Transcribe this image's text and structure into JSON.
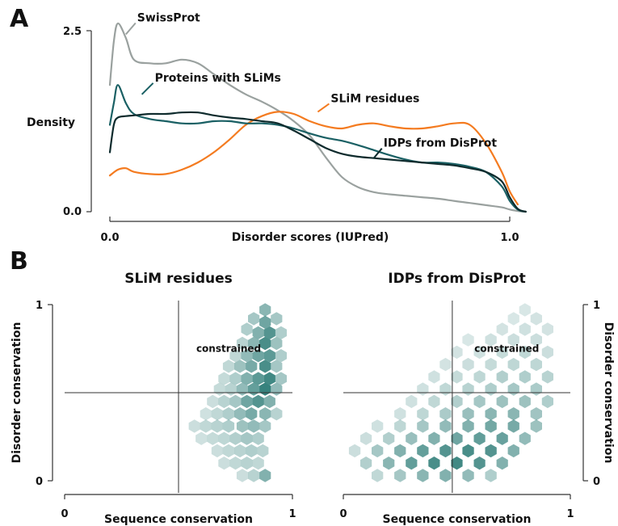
{
  "panel_labels": {
    "a": "A",
    "b": "B"
  },
  "colors": {
    "swissprot": "#9aa19f",
    "slim_proteins": "#1a6064",
    "slim_residues": "#f47b20",
    "disprot": "#0e2b2d",
    "hex": "#2e7d78"
  },
  "chart_data": [
    {
      "type": "line",
      "xlabel": "Disorder scores (IUPred)",
      "ylabel": "Density",
      "xlim": [
        0.0,
        1.0
      ],
      "ylim": [
        0.0,
        2.5
      ],
      "xticks": [
        "0.0",
        "1.0"
      ],
      "yticks": [
        "0.0",
        "2.5"
      ],
      "grid": false,
      "series": [
        {
          "name": "SwissProt",
          "color": "#9aa19f",
          "x": [
            0.0,
            0.01,
            0.02,
            0.04,
            0.06,
            0.1,
            0.14,
            0.18,
            0.22,
            0.26,
            0.3,
            0.34,
            0.38,
            0.42,
            0.46,
            0.5,
            0.54,
            0.58,
            0.62,
            0.66,
            0.7,
            0.74,
            0.78,
            0.82,
            0.86,
            0.9,
            0.94,
            0.98,
            1.0,
            1.02,
            1.04
          ],
          "y": [
            1.75,
            2.35,
            2.6,
            2.4,
            2.1,
            2.05,
            2.05,
            2.1,
            2.05,
            1.9,
            1.75,
            1.62,
            1.52,
            1.4,
            1.25,
            1.05,
            0.75,
            0.48,
            0.34,
            0.27,
            0.24,
            0.22,
            0.2,
            0.18,
            0.15,
            0.12,
            0.09,
            0.06,
            0.03,
            0.01,
            0.0
          ]
        },
        {
          "name": "Proteins with SLiMs",
          "color": "#1a6064",
          "x": [
            0.0,
            0.01,
            0.02,
            0.04,
            0.06,
            0.1,
            0.14,
            0.18,
            0.22,
            0.26,
            0.3,
            0.34,
            0.38,
            0.42,
            0.46,
            0.5,
            0.54,
            0.58,
            0.62,
            0.66,
            0.7,
            0.74,
            0.78,
            0.82,
            0.86,
            0.9,
            0.94,
            0.98,
            1.0,
            1.02,
            1.04
          ],
          "y": [
            1.2,
            1.5,
            1.75,
            1.5,
            1.35,
            1.28,
            1.25,
            1.22,
            1.22,
            1.25,
            1.25,
            1.22,
            1.22,
            1.2,
            1.15,
            1.08,
            1.02,
            0.98,
            0.92,
            0.85,
            0.78,
            0.72,
            0.68,
            0.68,
            0.66,
            0.62,
            0.55,
            0.35,
            0.15,
            0.03,
            0.0
          ]
        },
        {
          "name": "SLiM residues",
          "color": "#f47b20",
          "x": [
            0.0,
            0.02,
            0.04,
            0.06,
            0.1,
            0.14,
            0.18,
            0.22,
            0.26,
            0.3,
            0.34,
            0.38,
            0.42,
            0.46,
            0.5,
            0.54,
            0.58,
            0.62,
            0.66,
            0.7,
            0.74,
            0.78,
            0.82,
            0.86,
            0.9,
            0.94,
            0.98,
            1.0,
            1.02
          ],
          "y": [
            0.5,
            0.58,
            0.6,
            0.55,
            0.52,
            0.52,
            0.58,
            0.68,
            0.82,
            1.0,
            1.2,
            1.32,
            1.38,
            1.35,
            1.25,
            1.18,
            1.15,
            1.2,
            1.22,
            1.18,
            1.15,
            1.15,
            1.18,
            1.22,
            1.2,
            0.95,
            0.55,
            0.28,
            0.1
          ]
        },
        {
          "name": "IDPs from DisProt",
          "color": "#0e2b2d",
          "x": [
            0.0,
            0.01,
            0.02,
            0.04,
            0.06,
            0.1,
            0.14,
            0.18,
            0.22,
            0.26,
            0.3,
            0.34,
            0.38,
            0.42,
            0.46,
            0.5,
            0.54,
            0.58,
            0.62,
            0.66,
            0.7,
            0.74,
            0.78,
            0.82,
            0.86,
            0.9,
            0.94,
            0.98,
            1.0,
            1.02,
            1.04
          ],
          "y": [
            0.82,
            1.2,
            1.3,
            1.32,
            1.33,
            1.35,
            1.35,
            1.37,
            1.37,
            1.33,
            1.3,
            1.28,
            1.25,
            1.22,
            1.12,
            1.0,
            0.88,
            0.8,
            0.76,
            0.74,
            0.72,
            0.7,
            0.68,
            0.66,
            0.64,
            0.6,
            0.55,
            0.42,
            0.2,
            0.04,
            0.0
          ]
        }
      ],
      "annotations": [
        {
          "text": "SwissProt",
          "series": "SwissProt",
          "x": 0.04,
          "y": 2.45
        },
        {
          "text": "Proteins with SLiMs",
          "series": "Proteins with SLiMs",
          "x": 0.08,
          "y": 1.62
        },
        {
          "text": "SLiM residues",
          "series": "SLiM residues",
          "x": 0.52,
          "y": 1.38
        },
        {
          "text": "IDPs from DisProt",
          "series": "IDPs from DisProt",
          "x": 0.66,
          "y": 0.74
        }
      ]
    },
    {
      "type": "heatmap",
      "title": "SLiM residues",
      "xlabel": "Sequence conservation",
      "ylabel": "Disorder conservation",
      "xlim": [
        0,
        1
      ],
      "ylim": [
        0,
        1
      ],
      "xticks": [
        "0",
        "1"
      ],
      "yticks": [
        "0",
        "1"
      ],
      "yaxis_side": "left",
      "quadrant_lines": {
        "x": 0.5,
        "y": 0.5
      },
      "quadrant_label": {
        "text": "constrained",
        "x": 0.72,
        "y": 0.75
      },
      "cells": [
        [
          0.88,
          0.97,
          0.5
        ],
        [
          0.83,
          0.92,
          0.35
        ],
        [
          0.88,
          0.9,
          0.65
        ],
        [
          0.93,
          0.92,
          0.35
        ],
        [
          0.8,
          0.86,
          0.3
        ],
        [
          0.85,
          0.84,
          0.55
        ],
        [
          0.9,
          0.84,
          0.8
        ],
        [
          0.95,
          0.84,
          0.3
        ],
        [
          0.78,
          0.78,
          0.25
        ],
        [
          0.83,
          0.78,
          0.5
        ],
        [
          0.88,
          0.78,
          0.85
        ],
        [
          0.93,
          0.78,
          0.4
        ],
        [
          0.75,
          0.71,
          0.2
        ],
        [
          0.8,
          0.71,
          0.45
        ],
        [
          0.85,
          0.71,
          0.65
        ],
        [
          0.9,
          0.71,
          0.75
        ],
        [
          0.95,
          0.71,
          0.3
        ],
        [
          0.72,
          0.65,
          0.2
        ],
        [
          0.77,
          0.65,
          0.4
        ],
        [
          0.82,
          0.65,
          0.6
        ],
        [
          0.88,
          0.65,
          0.85
        ],
        [
          0.93,
          0.65,
          0.35
        ],
        [
          0.7,
          0.58,
          0.18
        ],
        [
          0.75,
          0.58,
          0.3
        ],
        [
          0.8,
          0.58,
          0.55
        ],
        [
          0.85,
          0.58,
          0.75
        ],
        [
          0.9,
          0.58,
          0.9
        ],
        [
          0.95,
          0.58,
          0.35
        ],
        [
          0.68,
          0.52,
          0.18
        ],
        [
          0.73,
          0.52,
          0.25
        ],
        [
          0.78,
          0.52,
          0.45
        ],
        [
          0.83,
          0.52,
          0.7
        ],
        [
          0.88,
          0.52,
          0.95
        ],
        [
          0.93,
          0.52,
          0.45
        ],
        [
          0.65,
          0.45,
          0.15
        ],
        [
          0.7,
          0.45,
          0.25
        ],
        [
          0.75,
          0.45,
          0.35
        ],
        [
          0.8,
          0.45,
          0.65
        ],
        [
          0.85,
          0.45,
          0.8
        ],
        [
          0.9,
          0.45,
          0.55
        ],
        [
          0.62,
          0.38,
          0.12
        ],
        [
          0.67,
          0.38,
          0.2
        ],
        [
          0.72,
          0.38,
          0.3
        ],
        [
          0.77,
          0.38,
          0.45
        ],
        [
          0.82,
          0.38,
          0.6
        ],
        [
          0.88,
          0.38,
          0.5
        ],
        [
          0.93,
          0.38,
          0.25
        ],
        [
          0.57,
          0.31,
          0.15
        ],
        [
          0.62,
          0.31,
          0.2
        ],
        [
          0.67,
          0.31,
          0.25
        ],
        [
          0.72,
          0.31,
          0.3
        ],
        [
          0.78,
          0.31,
          0.4
        ],
        [
          0.83,
          0.31,
          0.45
        ],
        [
          0.88,
          0.31,
          0.35
        ],
        [
          0.6,
          0.24,
          0.12
        ],
        [
          0.65,
          0.24,
          0.18
        ],
        [
          0.7,
          0.24,
          0.22
        ],
        [
          0.75,
          0.24,
          0.28
        ],
        [
          0.8,
          0.24,
          0.35
        ],
        [
          0.85,
          0.24,
          0.3
        ],
        [
          0.67,
          0.17,
          0.15
        ],
        [
          0.72,
          0.17,
          0.2
        ],
        [
          0.77,
          0.17,
          0.25
        ],
        [
          0.82,
          0.17,
          0.3
        ],
        [
          0.87,
          0.17,
          0.25
        ],
        [
          0.7,
          0.1,
          0.15
        ],
        [
          0.75,
          0.1,
          0.2
        ],
        [
          0.8,
          0.1,
          0.25
        ],
        [
          0.85,
          0.1,
          0.2
        ],
        [
          0.78,
          0.03,
          0.15
        ],
        [
          0.83,
          0.03,
          0.25
        ],
        [
          0.88,
          0.03,
          0.55
        ]
      ]
    },
    {
      "type": "heatmap",
      "title": "IDPs from DisProt",
      "xlabel": "Sequence conservation",
      "ylabel": "Disorder conservation",
      "xlim": [
        0,
        1
      ],
      "ylim": [
        0,
        1
      ],
      "xticks": [
        "0",
        "1"
      ],
      "yticks": [
        "0",
        "1"
      ],
      "yaxis_side": "right",
      "quadrant_lines": {
        "x": 0.48,
        "y": 0.5
      },
      "quadrant_label": {
        "text": "constrained",
        "x": 0.72,
        "y": 0.75
      },
      "cells": [
        [
          0.8,
          0.97,
          0.08
        ],
        [
          0.85,
          0.92,
          0.1
        ],
        [
          0.75,
          0.92,
          0.08
        ],
        [
          0.7,
          0.86,
          0.1
        ],
        [
          0.8,
          0.86,
          0.12
        ],
        [
          0.9,
          0.86,
          0.1
        ],
        [
          0.55,
          0.8,
          0.08
        ],
        [
          0.65,
          0.8,
          0.12
        ],
        [
          0.75,
          0.8,
          0.15
        ],
        [
          0.85,
          0.8,
          0.15
        ],
        [
          0.5,
          0.73,
          0.1
        ],
        [
          0.6,
          0.73,
          0.12
        ],
        [
          0.7,
          0.73,
          0.18
        ],
        [
          0.8,
          0.73,
          0.2
        ],
        [
          0.9,
          0.73,
          0.15
        ],
        [
          0.45,
          0.66,
          0.1
        ],
        [
          0.55,
          0.66,
          0.15
        ],
        [
          0.65,
          0.66,
          0.18
        ],
        [
          0.75,
          0.66,
          0.22
        ],
        [
          0.85,
          0.66,
          0.22
        ],
        [
          0.4,
          0.59,
          0.12
        ],
        [
          0.5,
          0.59,
          0.18
        ],
        [
          0.6,
          0.59,
          0.22
        ],
        [
          0.7,
          0.59,
          0.28
        ],
        [
          0.8,
          0.59,
          0.3
        ],
        [
          0.9,
          0.59,
          0.25
        ],
        [
          0.35,
          0.52,
          0.12
        ],
        [
          0.45,
          0.52,
          0.2
        ],
        [
          0.55,
          0.52,
          0.25
        ],
        [
          0.65,
          0.52,
          0.3
        ],
        [
          0.75,
          0.52,
          0.35
        ],
        [
          0.85,
          0.52,
          0.32
        ],
        [
          0.3,
          0.45,
          0.12
        ],
        [
          0.4,
          0.45,
          0.2
        ],
        [
          0.5,
          0.45,
          0.28
        ],
        [
          0.6,
          0.45,
          0.35
        ],
        [
          0.7,
          0.45,
          0.4
        ],
        [
          0.8,
          0.45,
          0.4
        ],
        [
          0.9,
          0.45,
          0.3
        ],
        [
          0.25,
          0.38,
          0.12
        ],
        [
          0.35,
          0.38,
          0.22
        ],
        [
          0.45,
          0.38,
          0.32
        ],
        [
          0.55,
          0.38,
          0.42
        ],
        [
          0.65,
          0.38,
          0.5
        ],
        [
          0.75,
          0.38,
          0.5
        ],
        [
          0.85,
          0.38,
          0.38
        ],
        [
          0.15,
          0.31,
          0.12
        ],
        [
          0.25,
          0.31,
          0.22
        ],
        [
          0.35,
          0.31,
          0.35
        ],
        [
          0.45,
          0.31,
          0.45
        ],
        [
          0.55,
          0.31,
          0.55
        ],
        [
          0.65,
          0.31,
          0.62
        ],
        [
          0.75,
          0.31,
          0.6
        ],
        [
          0.85,
          0.31,
          0.4
        ],
        [
          0.1,
          0.24,
          0.15
        ],
        [
          0.2,
          0.24,
          0.28
        ],
        [
          0.3,
          0.24,
          0.42
        ],
        [
          0.4,
          0.24,
          0.55
        ],
        [
          0.5,
          0.24,
          0.65
        ],
        [
          0.6,
          0.24,
          0.72
        ],
        [
          0.7,
          0.24,
          0.68
        ],
        [
          0.8,
          0.24,
          0.45
        ],
        [
          0.05,
          0.17,
          0.15
        ],
        [
          0.15,
          0.17,
          0.35
        ],
        [
          0.25,
          0.17,
          0.55
        ],
        [
          0.35,
          0.17,
          0.7
        ],
        [
          0.45,
          0.17,
          0.8
        ],
        [
          0.55,
          0.17,
          0.85
        ],
        [
          0.65,
          0.17,
          0.8
        ],
        [
          0.75,
          0.17,
          0.55
        ],
        [
          0.1,
          0.1,
          0.28
        ],
        [
          0.2,
          0.1,
          0.5
        ],
        [
          0.3,
          0.1,
          0.72
        ],
        [
          0.4,
          0.1,
          0.85
        ],
        [
          0.5,
          0.1,
          0.9
        ],
        [
          0.6,
          0.1,
          0.8
        ],
        [
          0.7,
          0.1,
          0.55
        ],
        [
          0.15,
          0.03,
          0.2
        ],
        [
          0.25,
          0.03,
          0.35
        ],
        [
          0.35,
          0.03,
          0.5
        ],
        [
          0.45,
          0.03,
          0.55
        ],
        [
          0.55,
          0.03,
          0.45
        ],
        [
          0.65,
          0.03,
          0.3
        ]
      ]
    }
  ]
}
